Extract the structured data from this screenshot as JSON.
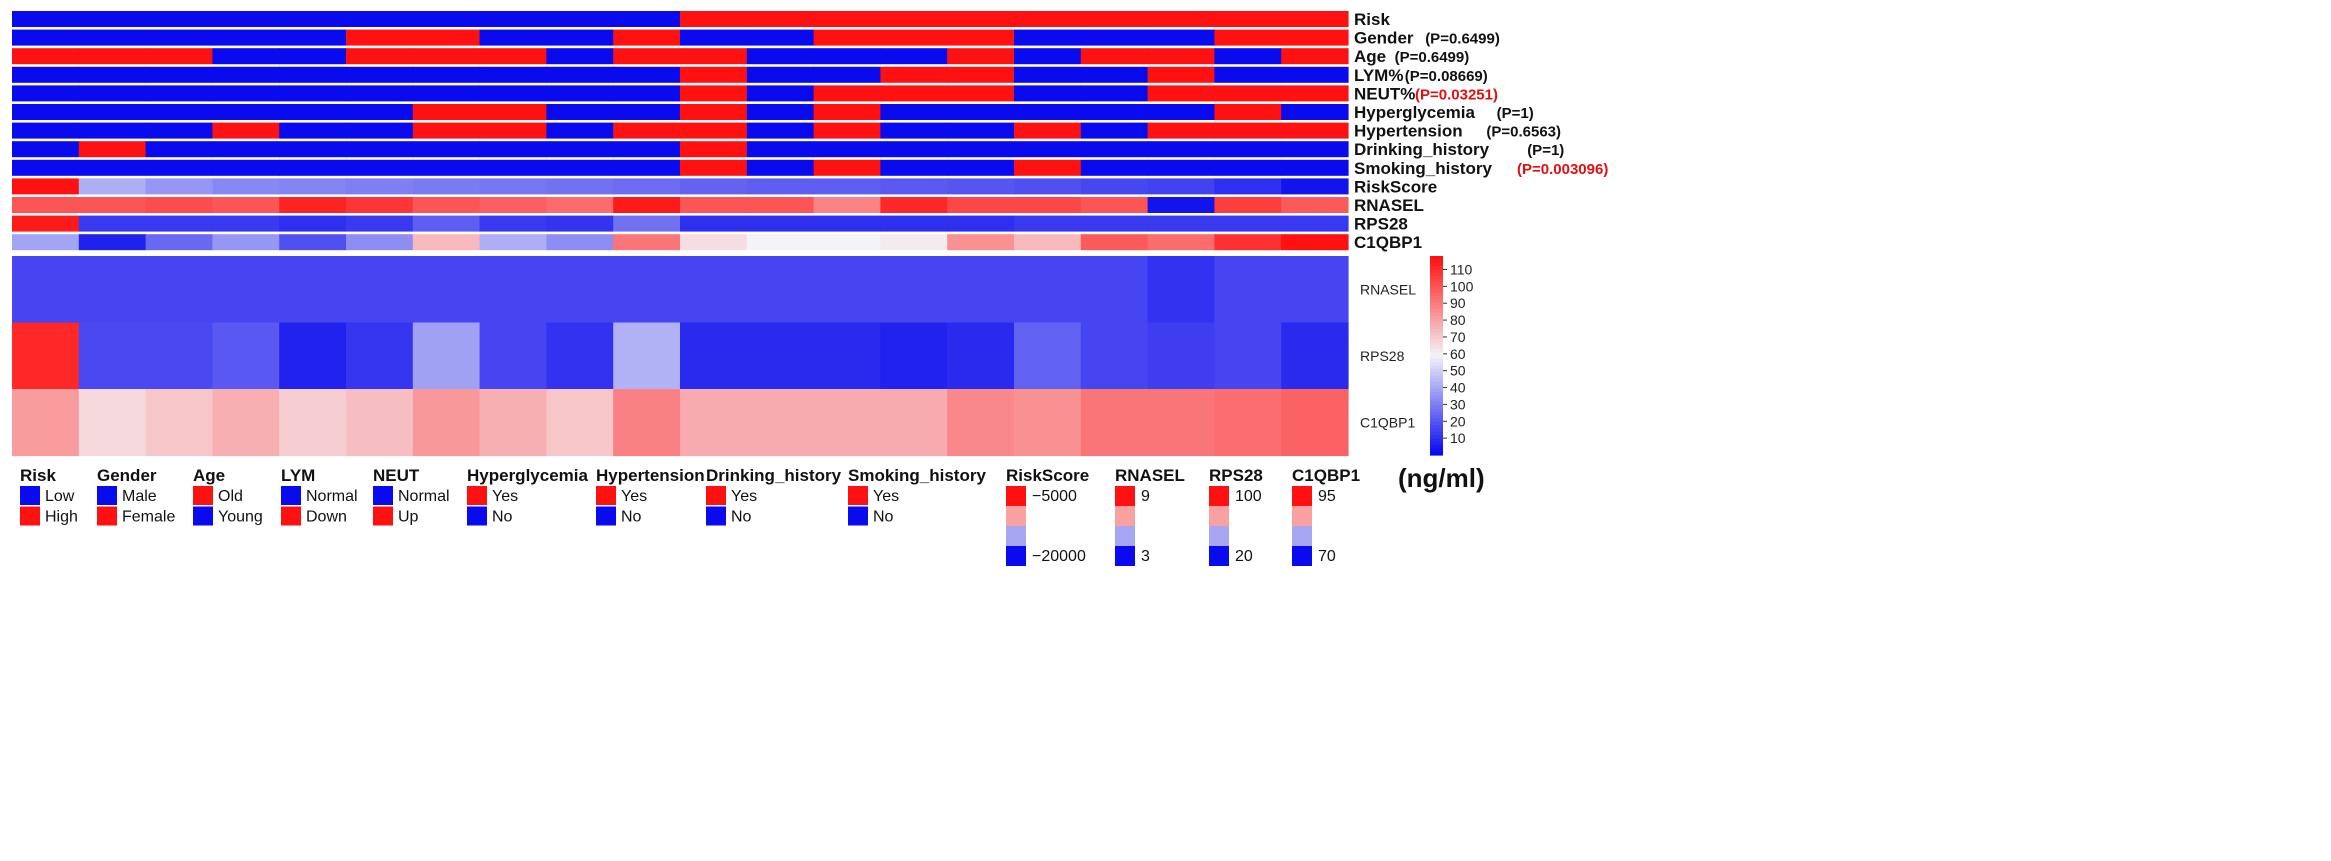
{
  "chart_data": {
    "type": "heatmap",
    "n_samples": 20,
    "palette": {
      "low": "#0a0aee",
      "mid": "#f4f4f8",
      "high": "#ff1111"
    },
    "annotation_tracks": [
      {
        "label": "Risk",
        "p": "",
        "p_color": "",
        "values": [
          "Low",
          "Low",
          "Low",
          "Low",
          "Low",
          "Low",
          "Low",
          "Low",
          "Low",
          "Low",
          "High",
          "High",
          "High",
          "High",
          "High",
          "High",
          "High",
          "High",
          "High",
          "High"
        ]
      },
      {
        "label": "Gender",
        "p": "(P=0.6499)",
        "p_color": "#111111",
        "values": [
          "Male",
          "Male",
          "Male",
          "Male",
          "Male",
          "Female",
          "Female",
          "Male",
          "Male",
          "Female",
          "Male",
          "Male",
          "Female",
          "Female",
          "Female",
          "Male",
          "Male",
          "Male",
          "Female",
          "Female"
        ]
      },
      {
        "label": "Age",
        "p": "(P=0.6499)",
        "p_color": "#111111",
        "values": [
          "Old",
          "Old",
          "Old",
          "Young",
          "Young",
          "Old",
          "Old",
          "Old",
          "Young",
          "Old",
          "Old",
          "Young",
          "Young",
          "Young",
          "Old",
          "Young",
          "Old",
          "Old",
          "Young",
          "Old"
        ]
      },
      {
        "label": "LYM%",
        "p": "(P=0.08669)",
        "p_color": "#111111",
        "values": [
          "Normal",
          "Normal",
          "Normal",
          "Normal",
          "Normal",
          "Normal",
          "Normal",
          "Normal",
          "Normal",
          "Normal",
          "Down",
          "Normal",
          "Normal",
          "Down",
          "Down",
          "Normal",
          "Normal",
          "Down",
          "Normal",
          "Normal"
        ]
      },
      {
        "label": "NEUT%",
        "p": "(P=0.03251)",
        "p_color": "#e01010",
        "values": [
          "Normal",
          "Normal",
          "Normal",
          "Normal",
          "Normal",
          "Normal",
          "Normal",
          "Normal",
          "Normal",
          "Normal",
          "Up",
          "Normal",
          "Up",
          "Up",
          "Up",
          "Normal",
          "Normal",
          "Up",
          "Up",
          "Up"
        ]
      },
      {
        "label": "Hyperglycemia",
        "p": "(P=1)",
        "p_color": "#111111",
        "values": [
          "No",
          "No",
          "No",
          "No",
          "No",
          "No",
          "Yes",
          "Yes",
          "No",
          "No",
          "Yes",
          "No",
          "Yes",
          "No",
          "No",
          "No",
          "No",
          "No",
          "Yes",
          "No"
        ]
      },
      {
        "label": "Hypertension",
        "p": "(P=0.6563)",
        "p_color": "#111111",
        "values": [
          "No",
          "No",
          "No",
          "Yes",
          "No",
          "No",
          "Yes",
          "Yes",
          "No",
          "Yes",
          "Yes",
          "No",
          "Yes",
          "No",
          "No",
          "Yes",
          "No",
          "Yes",
          "Yes",
          "Yes"
        ]
      },
      {
        "label": "Drinking_history",
        "p": "(P=1)",
        "p_color": "#111111",
        "values": [
          "No",
          "Yes",
          "No",
          "No",
          "No",
          "No",
          "No",
          "No",
          "No",
          "No",
          "Yes",
          "No",
          "No",
          "No",
          "No",
          "No",
          "No",
          "No",
          "No",
          "No"
        ]
      },
      {
        "label": "Smoking_history",
        "p": "(P=0.003096)",
        "p_color": "#e01010",
        "values": [
          "No",
          "No",
          "No",
          "No",
          "No",
          "No",
          "No",
          "No",
          "No",
          "No",
          "Yes",
          "No",
          "Yes",
          "No",
          "No",
          "Yes",
          "No",
          "No",
          "No",
          "No"
        ]
      }
    ],
    "score_tracks": [
      {
        "label": "RiskScore",
        "values": [
          1.0,
          0.35,
          0.3,
          0.27,
          0.26,
          0.25,
          0.24,
          0.23,
          0.22,
          0.21,
          0.19,
          0.18,
          0.18,
          0.17,
          0.16,
          0.15,
          0.13,
          0.12,
          0.08,
          0.02
        ]
      },
      {
        "label": "RNASEL",
        "values": [
          0.85,
          0.85,
          0.87,
          0.85,
          0.96,
          0.92,
          0.85,
          0.83,
          0.8,
          0.98,
          0.85,
          0.85,
          0.75,
          0.95,
          0.88,
          0.88,
          0.85,
          0.02,
          0.9,
          0.84
        ]
      },
      {
        "label": "RPS28",
        "values": [
          0.98,
          0.1,
          0.1,
          0.1,
          0.08,
          0.1,
          0.18,
          0.1,
          0.09,
          0.22,
          0.08,
          0.08,
          0.08,
          0.08,
          0.08,
          0.1,
          0.1,
          0.1,
          0.1,
          0.1
        ]
      },
      {
        "label": "C1QBP1",
        "values": [
          0.33,
          0.05,
          0.2,
          0.3,
          0.15,
          0.28,
          0.63,
          0.35,
          0.28,
          0.78,
          0.55,
          0.5,
          0.5,
          0.52,
          0.72,
          0.63,
          0.84,
          0.8,
          0.93,
          1.0
        ]
      }
    ],
    "heatmap_rows": [
      {
        "label": "RNASEL",
        "values": [
          15,
          15,
          15,
          15,
          15,
          15,
          15,
          15,
          15,
          15,
          15,
          15,
          15,
          15,
          15,
          15,
          15,
          10,
          15,
          15
        ]
      },
      {
        "label": "RPS28",
        "values": [
          112,
          16,
          16,
          20,
          6,
          11,
          38,
          15,
          10,
          42,
          8,
          8,
          8,
          6,
          8,
          22,
          15,
          13,
          15,
          8
        ]
      },
      {
        "label": "C1QBP1",
        "values": [
          82,
          66,
          71,
          77,
          69,
          73,
          83,
          77,
          71,
          89,
          78,
          78,
          78,
          78,
          87,
          85,
          92,
          92,
          94,
          97
        ]
      }
    ],
    "color_scale": {
      "min": 0,
      "max": 118,
      "ticks": [
        10,
        20,
        30,
        40,
        50,
        60,
        70,
        80,
        90,
        100,
        110
      ],
      "unit": "(ng/ml)"
    },
    "legends": [
      {
        "title": "Risk",
        "items": [
          {
            "color": "#0a0aee",
            "label": "Low"
          },
          {
            "color": "#ff1111",
            "label": "High"
          }
        ]
      },
      {
        "title": "Gender",
        "items": [
          {
            "color": "#0a0aee",
            "label": "Male"
          },
          {
            "color": "#ff1111",
            "label": "Female"
          }
        ]
      },
      {
        "title": "Age",
        "items": [
          {
            "color": "#ff1111",
            "label": "Old"
          },
          {
            "color": "#0a0aee",
            "label": "Young"
          }
        ]
      },
      {
        "title": "LYM",
        "items": [
          {
            "color": "#0a0aee",
            "label": "Normal"
          },
          {
            "color": "#ff1111",
            "label": "Down"
          }
        ]
      },
      {
        "title": "NEUT",
        "items": [
          {
            "color": "#0a0aee",
            "label": "Normal"
          },
          {
            "color": "#ff1111",
            "label": "Up"
          }
        ]
      },
      {
        "title": "Hyperglycemia",
        "items": [
          {
            "color": "#ff1111",
            "label": "Yes"
          },
          {
            "color": "#0a0aee",
            "label": "No"
          }
        ]
      },
      {
        "title": "Hypertension",
        "items": [
          {
            "color": "#ff1111",
            "label": "Yes"
          },
          {
            "color": "#0a0aee",
            "label": "No"
          }
        ]
      },
      {
        "title": "Drinking_history",
        "items": [
          {
            "color": "#ff1111",
            "label": "Yes"
          },
          {
            "color": "#0a0aee",
            "label": "No"
          }
        ]
      },
      {
        "title": "Smoking_history",
        "items": [
          {
            "color": "#ff1111",
            "label": "Yes"
          },
          {
            "color": "#0a0aee",
            "label": "No"
          }
        ]
      }
    ],
    "gradient_legends": [
      {
        "title": "RiskScore",
        "top": "−5000",
        "bottom": "−20000"
      },
      {
        "title": "RNASEL",
        "top": "9",
        "bottom": "3"
      },
      {
        "title": "RPS28",
        "top": "100",
        "bottom": "20"
      },
      {
        "title": "C1QBP1",
        "top": "95",
        "bottom": "70"
      }
    ],
    "gradient_swatch_colors": [
      "#ff1111",
      "#f9a0a0",
      "#a6a6f2",
      "#0a0aee"
    ]
  }
}
